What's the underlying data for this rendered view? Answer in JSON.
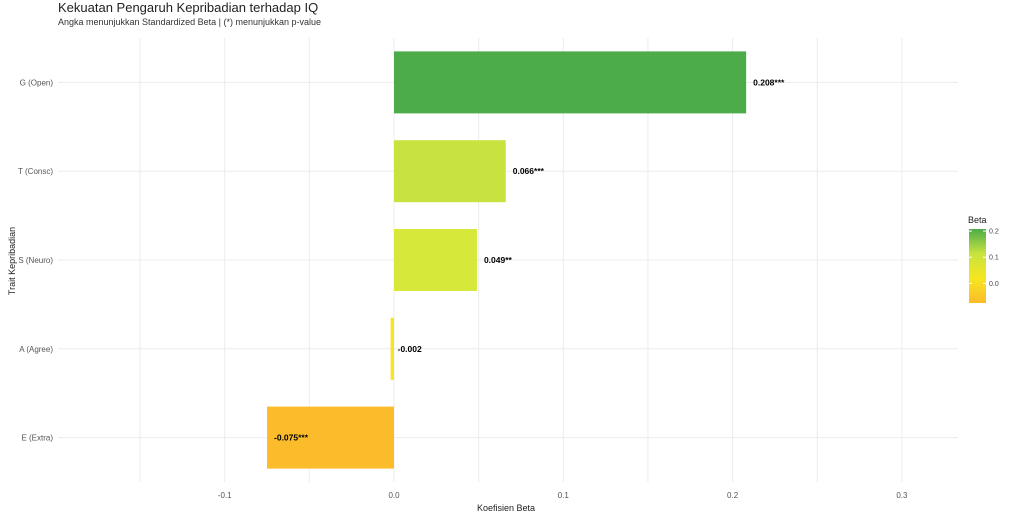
{
  "chart_data": {
    "type": "bar",
    "orientation": "horizontal",
    "title": "Kekuatan Pengaruh Kepribadian terhadap IQ",
    "subtitle": "Angka menunjukkan Standardized Beta | (*) menunjukkan p-value",
    "xlabel": "Koefisien Beta",
    "ylabel": "Trait Kepribadian",
    "xlim": [
      -0.15,
      0.33
    ],
    "x_ticks": [
      "-0.1",
      "0.0",
      "0.1",
      "0.2",
      "0.3"
    ],
    "x_tick_values": [
      -0.1,
      0.0,
      0.1,
      0.2,
      0.3
    ],
    "grid": true,
    "categories": [
      "G (Open)",
      "T (Consc)",
      "S (Neuro)",
      "A (Agree)",
      "E (Extra)"
    ],
    "values": [
      0.208,
      0.066,
      0.049,
      -0.002,
      -0.075
    ],
    "labels": [
      "0.208***",
      "0.066***",
      "0.049**",
      "-0.002",
      "-0.075***"
    ],
    "colors": [
      "#4cac4a",
      "#c8e33f",
      "#d6e93a",
      "#f6e620",
      "#fbbb2a"
    ],
    "legend": {
      "title": "Beta",
      "position": "right",
      "ticks": [
        "0.2",
        "0.1",
        "0.0"
      ],
      "tick_values": [
        0.2,
        0.1,
        0.0
      ],
      "range": [
        -0.075,
        0.208
      ],
      "gradient": [
        "#4cac4a",
        "#c8e33f",
        "#f6e620",
        "#fbbb2a"
      ]
    }
  }
}
